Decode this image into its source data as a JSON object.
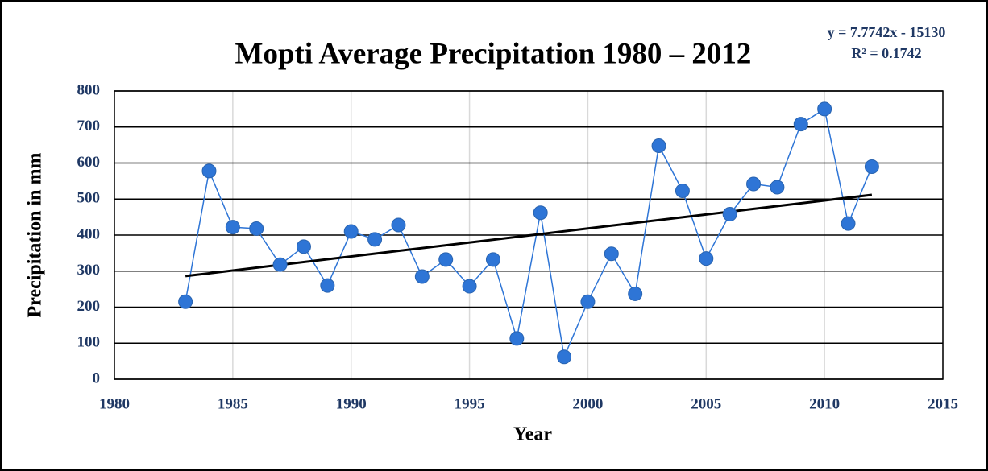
{
  "chart_data": {
    "type": "line",
    "title": "Mopti Average Precipitation 1980 – 2012",
    "x_label": "Year",
    "y_label": "Precipitation in mm",
    "x": [
      1983,
      1984,
      1985,
      1986,
      1987,
      1988,
      1989,
      1990,
      1991,
      1992,
      1993,
      1994,
      1995,
      1996,
      1997,
      1998,
      1999,
      2000,
      2001,
      2002,
      2003,
      2004,
      2005,
      2006,
      2007,
      2008,
      2009,
      2010,
      2011,
      2012
    ],
    "series": [
      {
        "name": "Precipitation",
        "color": "#2e75d6",
        "values": [
          215,
          578,
          422,
          418,
          318,
          368,
          260,
          410,
          388,
          428,
          285,
          332,
          258,
          332,
          113,
          462,
          62,
          215,
          348,
          237,
          648,
          523,
          335,
          458,
          542,
          533,
          708,
          750,
          432,
          590
        ]
      }
    ],
    "trendline": {
      "equation": "y = 7.7742x - 15130",
      "r_squared": "R² = 0.1742",
      "slope": 7.7742,
      "intercept": -15130,
      "color": "#000000"
    },
    "xlim": [
      1980,
      2015
    ],
    "xticks": [
      1980,
      1985,
      1990,
      1995,
      2000,
      2005,
      2010,
      2015
    ],
    "ylim": [
      0,
      800
    ],
    "yticks": [
      0,
      100,
      200,
      300,
      400,
      500,
      600,
      700,
      800
    ],
    "grid": true
  }
}
